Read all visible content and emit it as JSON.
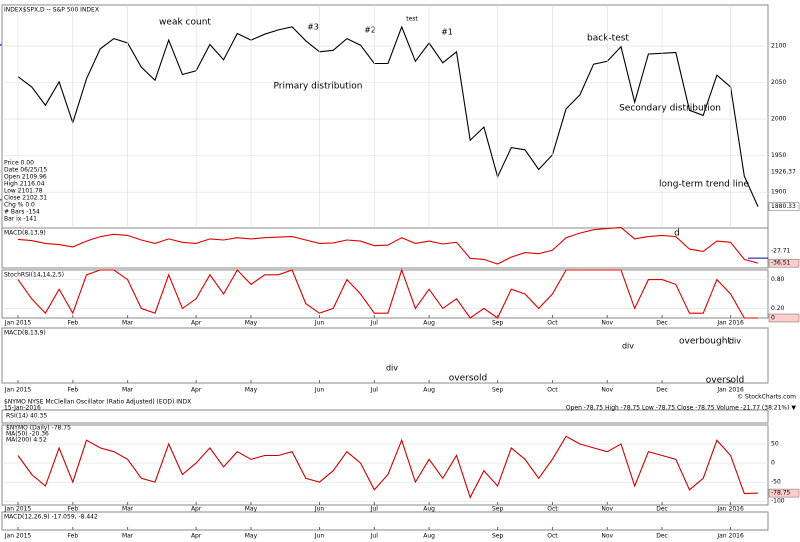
{
  "chart_data": [
    {
      "type": "line",
      "title": "INDEX$SPX,D -- S&P 500 INDEX",
      "color": "#000000",
      "values": [
        2058,
        2044,
        2019,
        2051,
        1995,
        2055,
        2096,
        2110,
        2104,
        2071,
        2053,
        2108,
        2061,
        2066,
        2102,
        2081,
        2117,
        2108,
        2116,
        2122,
        2126,
        2107,
        2092,
        2094,
        2110,
        2101,
        2076,
        2076,
        2126,
        2079,
        2104,
        2077,
        2092,
        1971,
        1989,
        1921,
        1961,
        1958,
        1931,
        1951,
        2014,
        2033,
        2075,
        2079,
        2099,
        2023,
        2089,
        2090,
        2091,
        2012,
        2005,
        2060,
        2044,
        1922,
        1880.33
      ],
      "ylim": [
        1851,
        2156
      ],
      "yticks": [
        1900,
        1950,
        2000,
        2050,
        2100
      ],
      "grid": true,
      "xticks": [
        {
          "value": 0,
          "label": "Jan 2015"
        },
        {
          "value": 4,
          "label": "Feb"
        },
        {
          "value": 8,
          "label": "Mar"
        },
        {
          "value": 13,
          "label": "Apr"
        },
        {
          "value": 17,
          "label": "May"
        },
        {
          "value": 22,
          "label": "Jun"
        },
        {
          "value": 26,
          "label": "Jul"
        },
        {
          "value": 30,
          "label": "Aug"
        },
        {
          "value": 35,
          "label": "Sep"
        },
        {
          "value": 39,
          "label": "Oct"
        },
        {
          "value": 43,
          "label": "Nov"
        },
        {
          "value": 47,
          "label": "Dec"
        },
        {
          "value": 52,
          "label": "Jan 2016"
        }
      ],
      "ma_label": "1926.37",
      "annotations": [
        "weak count",
        "#3",
        "#2",
        "#1",
        "test",
        "back-test",
        "Primary distribution",
        "Secondary distribution",
        "long-term trend line",
        "d"
      ],
      "info": [
        "Price 0.00",
        "Date 06/25/15",
        "Open 2109.96",
        "High 2116.04",
        "Low 2101.78",
        "Close 2102.31",
        "Chg % 0.0",
        "# Bars -154",
        "Bar ix -141"
      ]
    },
    {
      "type": "line",
      "title": "MACD(8,13,9)",
      "color": "#dd0000",
      "values": [
        5,
        3,
        -2,
        -4,
        -8,
        2,
        10,
        14,
        12,
        4,
        -2,
        6,
        0,
        -2,
        6,
        4,
        8,
        6,
        8,
        9,
        10,
        4,
        -2,
        -1,
        4,
        2,
        -6,
        -5,
        8,
        -2,
        2,
        -3,
        0,
        -28,
        -30,
        -38,
        -26,
        -18,
        -20,
        -14,
        8,
        16,
        22,
        24,
        26,
        6,
        10,
        12,
        10,
        -12,
        -16,
        2,
        0,
        -30,
        -36.51
      ],
      "ylim": [
        -45,
        25
      ],
      "signal_last": -27.71
    },
    {
      "type": "line",
      "title": "StochRSI(14,14,2,5)",
      "color": "#dd0000",
      "values": [
        0.8,
        0.4,
        0.1,
        0.6,
        0.1,
        0.9,
        1,
        1,
        0.8,
        0.2,
        0.1,
        0.9,
        0.2,
        0.4,
        0.9,
        0.5,
        1,
        0.7,
        0.9,
        0.9,
        1,
        0.3,
        0.1,
        0.2,
        0.8,
        0.5,
        0.1,
        0.1,
        1,
        0.2,
        0.6,
        0.2,
        0.4,
        0,
        0.2,
        0,
        0.6,
        0.5,
        0.2,
        0.5,
        1,
        1,
        1,
        1,
        1,
        0.2,
        0.8,
        0.8,
        0.7,
        0.1,
        0.1,
        0.8,
        0.5,
        0,
        0
      ],
      "ylim": [
        0,
        1
      ],
      "yticks": [
        {
          "value": 0.8,
          "label": "0.80"
        },
        {
          "value": 0.2,
          "label": "0.20"
        }
      ]
    },
    {
      "type": "panel",
      "title": "MACD(8,13,9)",
      "annotations": [
        "div",
        "oversold",
        "div",
        "overbought",
        "div",
        "oversold"
      ]
    },
    {
      "type": "line",
      "title": "$NYMO NYSE McClellan Oscillator (Ratio Adjusted) (EOD) INDX",
      "subtitle": "15-Jan-2016",
      "ohlc": "Open -78.75  High -78.75  Low -78.75  Close -78.75  Volume -21.77 (38.21%) ▼",
      "legend": [
        "RSI(14) 40.35",
        "$NYMO (Daily) -78.75",
        "MA(50) -20.36",
        "MA(200) 4.52"
      ],
      "color": "#cc0000",
      "values": [
        20,
        -30,
        -60,
        40,
        -50,
        60,
        40,
        30,
        10,
        -40,
        -50,
        50,
        -30,
        0,
        40,
        -10,
        30,
        10,
        20,
        20,
        30,
        -40,
        -50,
        -20,
        30,
        0,
        -70,
        -30,
        60,
        -50,
        10,
        -40,
        20,
        -90,
        -20,
        -60,
        40,
        10,
        -40,
        10,
        70,
        50,
        40,
        30,
        50,
        -60,
        30,
        20,
        10,
        -70,
        -40,
        60,
        20,
        -80,
        -78.75
      ],
      "ylim": [
        -110,
        100
      ],
      "yticks": [
        -100,
        -50,
        0,
        50
      ],
      "credit": "© StockCharts.com"
    },
    {
      "type": "panel",
      "title": "MACD(12,26,9) -17.059, -8.442"
    }
  ]
}
